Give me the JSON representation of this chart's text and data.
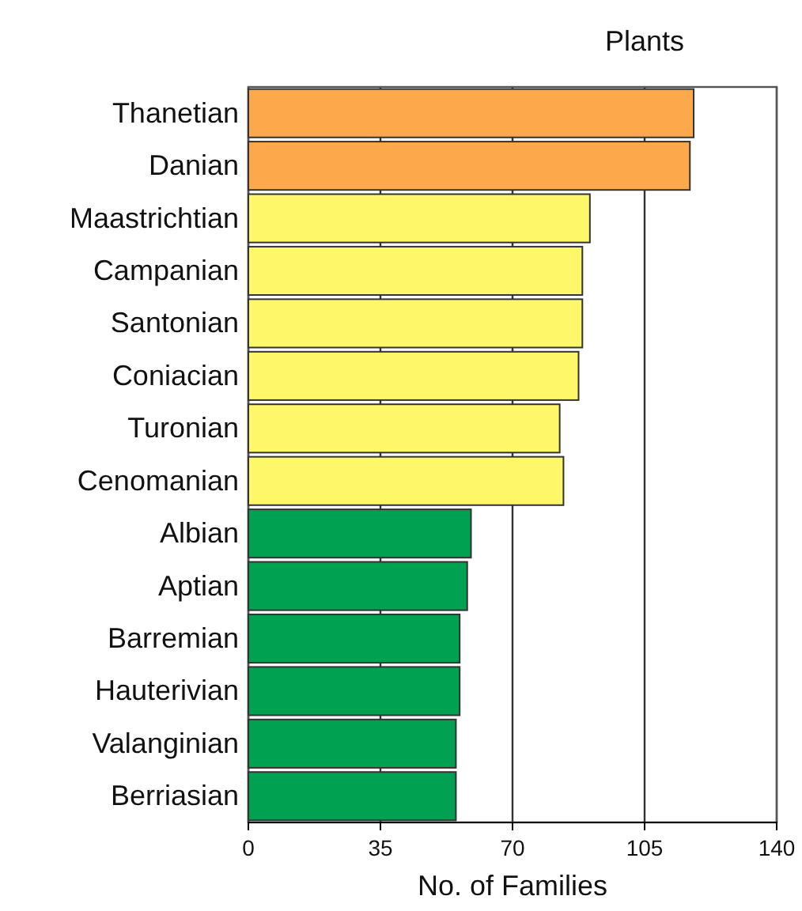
{
  "chart_data": {
    "type": "bar",
    "orientation": "horizontal",
    "title": "Plants",
    "xlabel": "No. of Families",
    "categories": [
      "Thanetian",
      "Danian",
      "Maastrichtian",
      "Campanian",
      "Santonian",
      "Coniacian",
      "Turonian",
      "Cenomanian",
      "Albian",
      "Aptian",
      "Barremian",
      "Hauterivian",
      "Valanginian",
      "Berriasian"
    ],
    "values": [
      118,
      117,
      90.5,
      88.5,
      88.5,
      87.5,
      82.5,
      83.5,
      59,
      58,
      56,
      56,
      55,
      55
    ],
    "colors": [
      "#fba94a",
      "#fba94a",
      "#fef76a",
      "#fef76a",
      "#fef76a",
      "#fef76a",
      "#fef76a",
      "#fef76a",
      "#00a151",
      "#00a151",
      "#00a151",
      "#00a151",
      "#00a151",
      "#00a151"
    ],
    "xlim": [
      0,
      140
    ],
    "xticks": [
      0,
      35,
      70,
      105,
      140
    ],
    "grid": "x"
  }
}
